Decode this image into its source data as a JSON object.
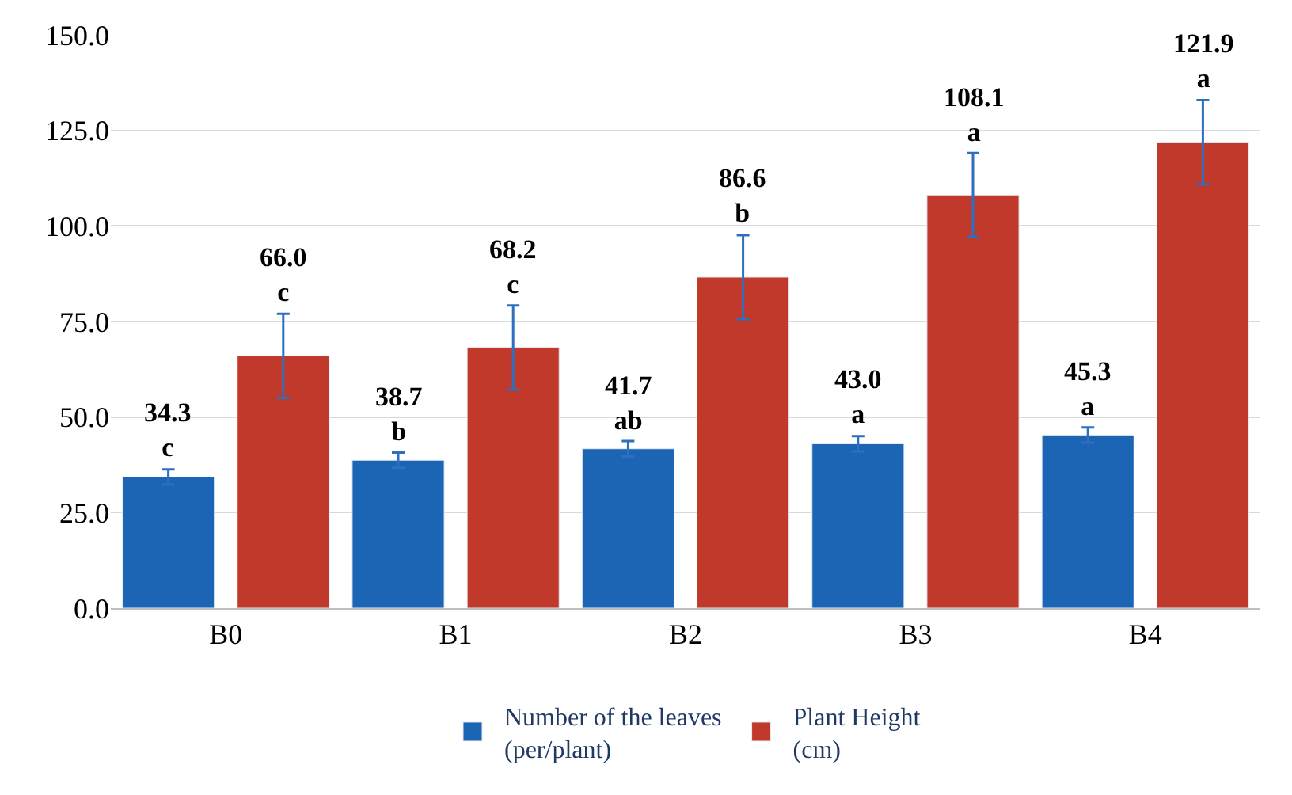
{
  "chart_data": {
    "type": "bar",
    "categories": [
      "B0",
      "B1",
      "B2",
      "B3",
      "B4"
    ],
    "series": [
      {
        "name": "Number of the leaves\n(per/plant)",
        "color": "#1c64b4",
        "values": [
          34.3,
          38.7,
          41.7,
          43.0,
          45.3
        ],
        "errors": [
          2,
          2,
          2,
          2,
          2
        ],
        "value_labels": [
          "34.3\nc",
          "38.7\nb",
          "41.7\nab",
          "43.0\na",
          "45.3\na"
        ]
      },
      {
        "name": "Plant Height\n(cm)",
        "color": "#c0392b",
        "values": [
          66.0,
          68.2,
          86.6,
          108.1,
          121.9
        ],
        "errors": [
          11,
          11,
          11,
          11,
          11
        ],
        "value_labels": [
          "66.0\nc",
          "68.2\nc",
          "86.6\nb",
          "108.1\na",
          "121.9\na"
        ]
      }
    ],
    "ylim": [
      0,
      150
    ],
    "yticks": [
      {
        "value": 0,
        "label": "0.0"
      },
      {
        "value": 25,
        "label": "25.0"
      },
      {
        "value": 50,
        "label": "50.0"
      },
      {
        "value": 75,
        "label": "75.0"
      },
      {
        "value": 100,
        "label": "100.0"
      },
      {
        "value": 125,
        "label": "125.0"
      },
      {
        "value": 150,
        "label": "150.0"
      }
    ],
    "grid": "y",
    "legend": "bottom"
  }
}
